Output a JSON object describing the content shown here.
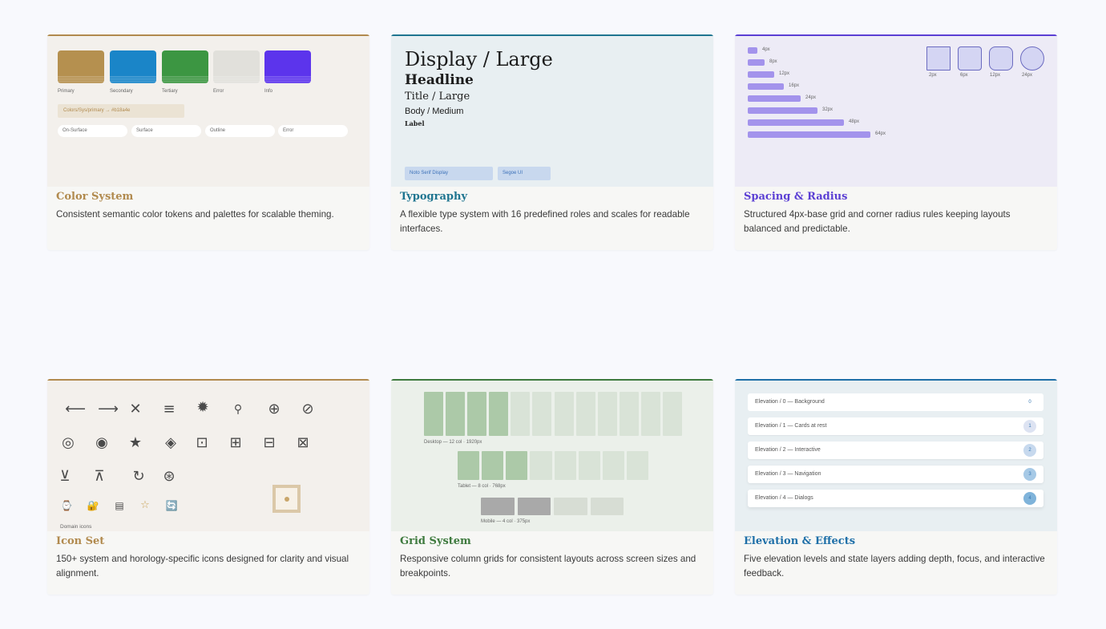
{
  "cards": {
    "color": {
      "title": "Color System",
      "desc": "Consistent semantic color tokens and palettes for scalable theming.",
      "swatches": [
        "Primary",
        "Secondary",
        "Tertiary",
        "Error",
        "Info"
      ],
      "token": "Colors/Sys/primary → #b18a4e",
      "pills": [
        "On-Surface",
        "Surface",
        "Outline",
        "Error"
      ],
      "accent": "#b18a4e"
    },
    "typography": {
      "title": "Typography",
      "desc": "A flexible type system with 16 predefined roles and scales for readable interfaces.",
      "display": "Display / Large",
      "headline": "Headline",
      "title_large": "Title / Large",
      "body": "Body / Medium",
      "label": "Label",
      "chips": [
        "Noto Serif Display",
        "Segoe UI"
      ],
      "accent": "#1f7590"
    },
    "spacing": {
      "title": "Spacing & Radius",
      "desc": "Structured 4px-base grid and corner radius rules keeping layouts balanced and predictable.",
      "bars": [
        "4px",
        "8px",
        "12px",
        "16px",
        "24px",
        "32px",
        "48px",
        "64px"
      ],
      "radii": [
        "2px",
        "6px",
        "12px",
        "24px"
      ],
      "accent": "#5b3fd4"
    },
    "icons": {
      "title": "Icon Set",
      "desc": "150+ system and horology-specific icons designed for clarity and visual alignment.",
      "row1": [
        "arrow-left-icon",
        "arrow-right-icon",
        "close-icon",
        "menu-icon",
        "gear-icon",
        "search-icon",
        "crosshair-icon",
        "block-icon"
      ],
      "row2": [
        "radio-on-icon",
        "record-icon",
        "star-icon",
        "diamond-icon",
        "dot-square-icon",
        "grid-icon",
        "split-icon",
        "x-box-icon"
      ],
      "row3": [
        "download-icon",
        "upload-icon",
        "refresh-icon",
        "asterisk-icon"
      ],
      "domain_label": "Domain icons",
      "accent": "#b18a4e"
    },
    "grid": {
      "title": "Grid System",
      "desc": "Responsive column grids for consistent layouts across screen sizes and breakpoints.",
      "desktop": "Desktop — 12 col · 1920px",
      "tablet": "Tablet — 8 col · 768px",
      "mobile": "Mobile — 4 col · 375px",
      "accent": "#3e7a3e"
    },
    "elevation": {
      "title": "Elevation & Effects",
      "desc": "Five elevation levels and state layers adding depth, focus, and interactive feedback.",
      "rows": [
        {
          "label": "Elevation / 0 — Background",
          "level": "0"
        },
        {
          "label": "Elevation / 1 — Cards at rest",
          "level": "1"
        },
        {
          "label": "Elevation / 2 — Interactive",
          "level": "2"
        },
        {
          "label": "Elevation / 3 — Navigation",
          "level": "3"
        },
        {
          "label": "Elevation / 4 — Dialogs",
          "level": "4"
        }
      ],
      "accent": "#1e6fa8"
    }
  }
}
